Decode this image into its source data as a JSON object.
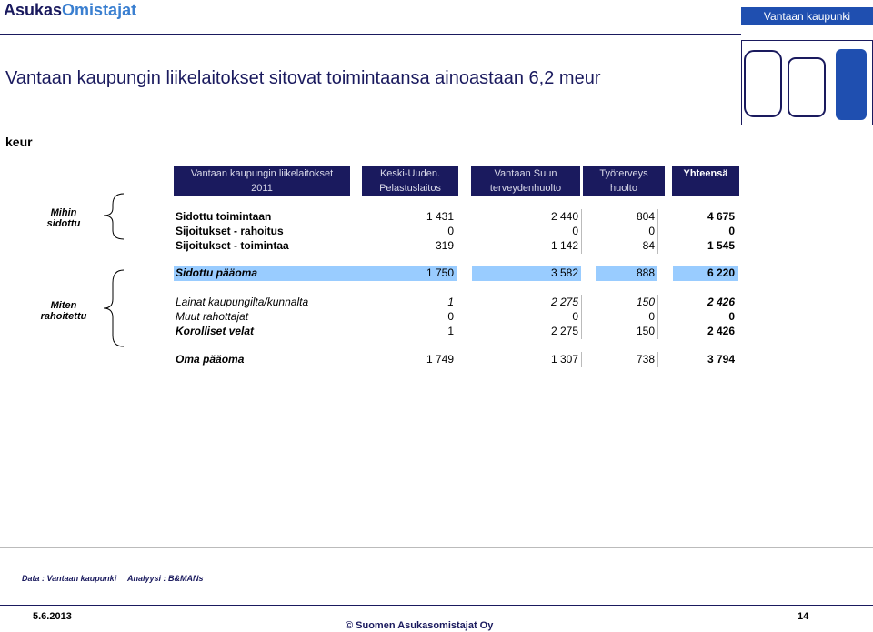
{
  "header": {
    "logo_part1": "Asukas",
    "logo_part2": "Omistajat",
    "org": "Vantaan kaupunki"
  },
  "title": "Vantaan kaupungin liikelaitokset sitovat toimintaansa ainoastaan 6,2 meur",
  "unit": "keur",
  "table": {
    "columns": [
      [
        "Vantaan kaupungin liikelaitokset",
        "2011"
      ],
      [
        "Keski-Uuden.",
        "Pelastuslaitos"
      ],
      [
        "Vantaan Suun",
        "terveydenhuolto"
      ],
      [
        "Työterveys",
        "huolto"
      ],
      [
        "Yhteensä"
      ]
    ],
    "groups": [
      [
        "Mihin",
        "sidottu"
      ],
      [
        "Miten",
        "rahoitettu"
      ]
    ],
    "rows": [
      {
        "label": "Sidottu toimintaan",
        "cells": [
          "1 431",
          "2 440",
          "804",
          "4 675"
        ]
      },
      {
        "label": "Sijoitukset - rahoitus",
        "cells": [
          "0",
          "0",
          "0",
          "0"
        ]
      },
      {
        "label": "Sijoitukset - toimintaa",
        "cells": [
          "319",
          "1 142",
          "84",
          "1 545"
        ]
      },
      {
        "label": "Sidottu pääoma",
        "cells": [
          "1 750",
          "3 582",
          "888",
          "6 220"
        ]
      },
      {
        "label": "Lainat kaupungilta/kunnalta",
        "cells": [
          "1",
          "2 275",
          "150",
          "2 426"
        ]
      },
      {
        "label": "Muut rahottajat",
        "cells": [
          "0",
          "0",
          "0",
          "0"
        ]
      },
      {
        "label": "Korolliset velat",
        "cells": [
          "1",
          "2 275",
          "150",
          "2 426"
        ]
      },
      {
        "label": "Oma pääoma",
        "cells": [
          "1 749",
          "1 307",
          "738",
          "3 794"
        ]
      }
    ]
  },
  "footer": {
    "data": "Data :  Vantaan kaupunki",
    "analysis": "Analyysi : B&MANs",
    "date": "5.6.2013",
    "copyright": "©  Suomen Asukasomistajat Oy",
    "page": "14"
  }
}
